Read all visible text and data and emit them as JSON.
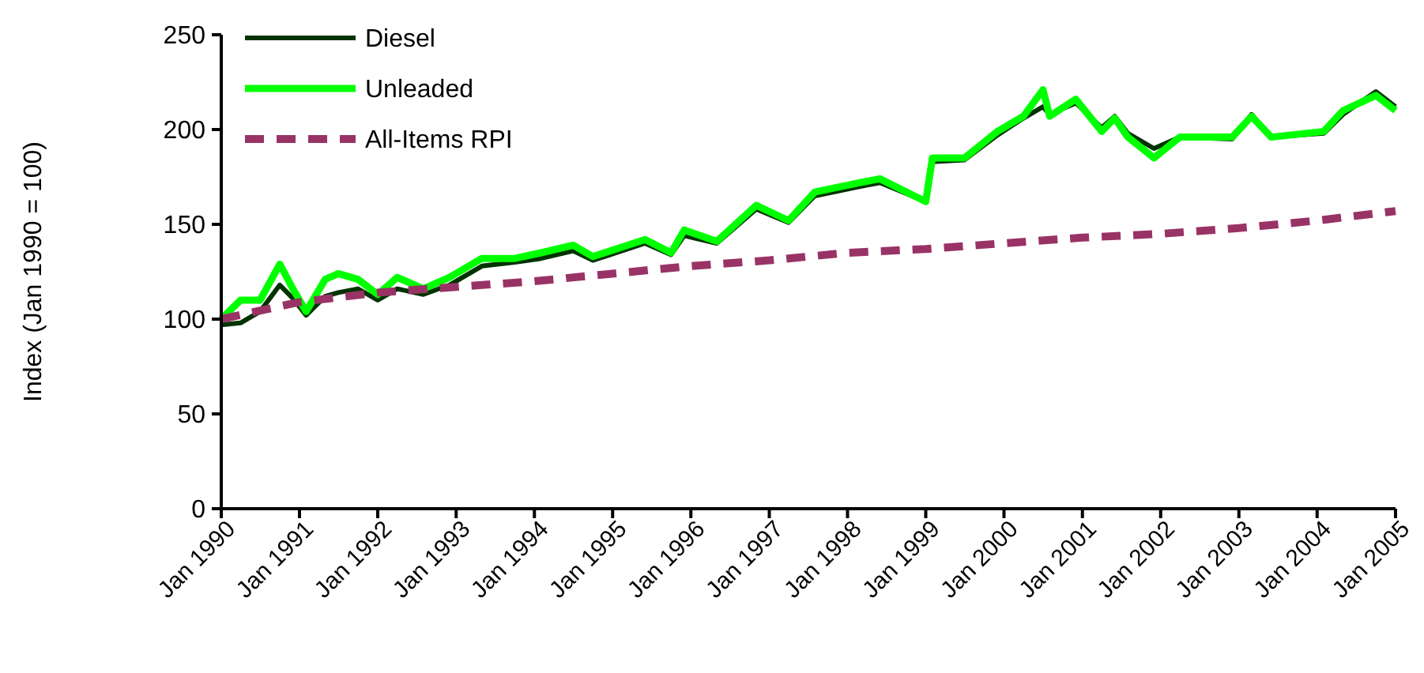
{
  "chart_data": {
    "type": "line",
    "ylabel": "Index (Jan 1990 = 100)",
    "legend": "top left",
    "grid": false,
    "xlim": [
      "1990-01",
      "2005-01"
    ],
    "ylim": [
      0,
      250
    ],
    "yticks": [
      0,
      50,
      100,
      150,
      200,
      250
    ],
    "xticks": [
      {
        "value": "1990-01",
        "label": "Jan 1990"
      },
      {
        "value": "1991-01",
        "label": "Jan 1991"
      },
      {
        "value": "1992-01",
        "label": "Jan 1992"
      },
      {
        "value": "1993-01",
        "label": "Jan 1993"
      },
      {
        "value": "1994-01",
        "label": "Jan 1994"
      },
      {
        "value": "1995-01",
        "label": "Jan 1995"
      },
      {
        "value": "1996-01",
        "label": "Jan 1996"
      },
      {
        "value": "1997-01",
        "label": "Jan 1997"
      },
      {
        "value": "1998-01",
        "label": "Jan 1998"
      },
      {
        "value": "1999-01",
        "label": "Jan 1999"
      },
      {
        "value": "2000-01",
        "label": "Jan 2000"
      },
      {
        "value": "2001-01",
        "label": "Jan 2001"
      },
      {
        "value": "2002-01",
        "label": "Jan 2002"
      },
      {
        "value": "2003-01",
        "label": "Jan 2003"
      },
      {
        "value": "2004-01",
        "label": "Jan 2004"
      },
      {
        "value": "2005-01",
        "label": "Jan 2005"
      }
    ],
    "series": [
      {
        "name": "Diesel",
        "color": "#003300",
        "line_style": "solid",
        "x": [
          "1990-01",
          "1990-04",
          "1990-07",
          "1990-10",
          "1990-12",
          "1991-02",
          "1991-05",
          "1991-07",
          "1991-10",
          "1992-01",
          "1992-04",
          "1992-08",
          "1992-12",
          "1993-05",
          "1993-10",
          "1994-02",
          "1994-07",
          "1994-10",
          "1995-06",
          "1995-10",
          "1995-12",
          "1996-05",
          "1996-11",
          "1997-04",
          "1997-08",
          "1998-03",
          "1998-06",
          "1999-01",
          "1999-02",
          "1999-07",
          "1999-12",
          "2000-04",
          "2000-07",
          "2000-08",
          "2000-12",
          "2001-04",
          "2001-06",
          "2001-08",
          "2001-12",
          "2002-04",
          "2002-12",
          "2003-03",
          "2003-06",
          "2004-02",
          "2004-05",
          "2004-10",
          "2005-01"
        ],
        "values": [
          97,
          98,
          104,
          118,
          111,
          102,
          112,
          114,
          116,
          110,
          116,
          113,
          118,
          128,
          130,
          132,
          136,
          131,
          140,
          134,
          144,
          140,
          158,
          151,
          165,
          170,
          172,
          162,
          183,
          184,
          197,
          206,
          212,
          208,
          214,
          201,
          207,
          198,
          190,
          196,
          195,
          208,
          196,
          198,
          208,
          220,
          212
        ]
      },
      {
        "name": "Unleaded",
        "color": "#00ff00",
        "line_style": "solid",
        "x": [
          "1990-01",
          "1990-04",
          "1990-07",
          "1990-10",
          "1990-12",
          "1991-02",
          "1991-05",
          "1991-07",
          "1991-10",
          "1992-01",
          "1992-04",
          "1992-08",
          "1992-12",
          "1993-05",
          "1993-10",
          "1994-02",
          "1994-07",
          "1994-10",
          "1995-06",
          "1995-10",
          "1995-12",
          "1996-05",
          "1996-11",
          "1997-04",
          "1997-08",
          "1998-03",
          "1998-06",
          "1999-01",
          "1999-02",
          "1999-07",
          "1999-12",
          "2000-04",
          "2000-07",
          "2000-08",
          "2000-12",
          "2001-04",
          "2001-06",
          "2001-08",
          "2001-12",
          "2002-04",
          "2002-12",
          "2003-03",
          "2003-06",
          "2004-02",
          "2004-05",
          "2004-10",
          "2005-01"
        ],
        "values": [
          100,
          110,
          110,
          129,
          116,
          104,
          121,
          124,
          121,
          113,
          122,
          116,
          122,
          132,
          132,
          135,
          139,
          133,
          142,
          135,
          147,
          141,
          160,
          152,
          167,
          172,
          174,
          162,
          185,
          185,
          199,
          207,
          221,
          207,
          216,
          199,
          206,
          196,
          185,
          196,
          196,
          207,
          196,
          199,
          210,
          218,
          210
        ]
      },
      {
        "name": "All-Items RPI",
        "color": "#993366",
        "line_style": "dashed",
        "x": [
          "1990-01",
          "1991-01",
          "1992-01",
          "1993-01",
          "1994-01",
          "1995-01",
          "1996-01",
          "1997-01",
          "1998-01",
          "1999-01",
          "2000-01",
          "2001-01",
          "2002-01",
          "2003-01",
          "2004-01",
          "2005-01"
        ],
        "values": [
          100,
          109,
          114,
          117,
          120,
          124,
          128,
          131,
          135,
          137,
          140,
          143,
          145,
          148,
          152,
          157
        ]
      }
    ]
  }
}
